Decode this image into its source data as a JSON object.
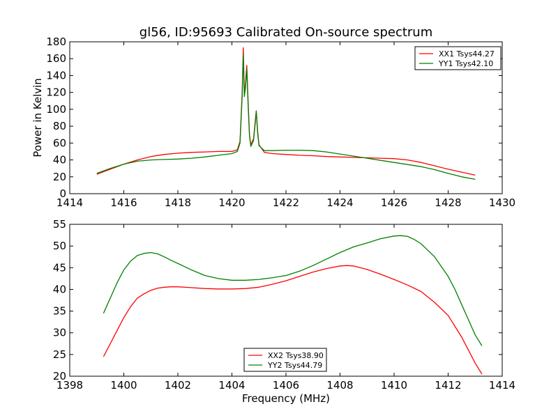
{
  "chart_data": [
    {
      "type": "line",
      "title": "gl56, ID:95693 Calibrated On-source spectrum",
      "xlabel": "",
      "ylabel": "Power in Kelvin",
      "xlim": [
        1414,
        1430
      ],
      "ylim": [
        0,
        180
      ],
      "xticks": [
        "1414",
        "1416",
        "1418",
        "1420",
        "1422",
        "1424",
        "1426",
        "1428",
        "1430"
      ],
      "yticks": [
        "0",
        "20",
        "40",
        "60",
        "80",
        "100",
        "120",
        "140",
        "160",
        "180"
      ],
      "grid": false,
      "legend_position": "top-right",
      "series": [
        {
          "name": "XX1 Tsys44.27",
          "color": "#ff0000",
          "x": [
            1415.0,
            1415.5,
            1416.0,
            1416.5,
            1417.0,
            1417.5,
            1418.0,
            1418.5,
            1419.0,
            1419.5,
            1420.0,
            1420.2,
            1420.3,
            1420.38,
            1420.42,
            1420.46,
            1420.5,
            1420.55,
            1420.6,
            1420.65,
            1420.7,
            1420.8,
            1420.86,
            1420.9,
            1420.95,
            1421.0,
            1421.2,
            1421.5,
            1422.0,
            1422.5,
            1423.0,
            1423.5,
            1424.0,
            1424.5,
            1425.0,
            1425.5,
            1426.0,
            1426.5,
            1427.0,
            1427.5,
            1428.0,
            1428.5,
            1429.0
          ],
          "y": [
            23,
            29,
            35,
            40,
            44,
            46.5,
            48,
            49,
            49.5,
            50,
            50,
            52,
            62,
            120,
            173,
            120,
            130,
            152,
            110,
            70,
            58,
            65,
            85,
            98,
            75,
            58,
            49,
            47.5,
            46.5,
            45.5,
            45,
            44,
            43.5,
            43,
            42.5,
            42,
            41.5,
            40,
            37,
            33,
            29,
            25.5,
            22
          ]
        },
        {
          "name": "YY1 Tsys42.10",
          "color": "#008000",
          "x": [
            1415.0,
            1415.5,
            1416.0,
            1416.5,
            1417.0,
            1417.5,
            1418.0,
            1418.5,
            1419.0,
            1419.5,
            1420.0,
            1420.2,
            1420.3,
            1420.38,
            1420.42,
            1420.46,
            1420.5,
            1420.55,
            1420.6,
            1420.65,
            1420.7,
            1420.8,
            1420.86,
            1420.9,
            1420.95,
            1421.0,
            1421.2,
            1421.5,
            1422.0,
            1422.5,
            1423.0,
            1423.5,
            1424.0,
            1424.5,
            1425.0,
            1425.5,
            1426.0,
            1426.5,
            1427.0,
            1427.5,
            1428.0,
            1428.5,
            1429.0
          ],
          "y": [
            24,
            30,
            35,
            38.5,
            40,
            40.5,
            41,
            42,
            43.5,
            45.5,
            47.5,
            50,
            60,
            115,
            165,
            115,
            125,
            148,
            105,
            68,
            56,
            63,
            82,
            98,
            72,
            57,
            51,
            51,
            51.5,
            51.5,
            51,
            49.5,
            47,
            44.5,
            42,
            39.5,
            37,
            34.5,
            32,
            28.5,
            24,
            20,
            17
          ]
        }
      ]
    },
    {
      "type": "line",
      "title": "",
      "xlabel": "Frequency (MHz)",
      "ylabel": "",
      "xlim": [
        1398,
        1414
      ],
      "ylim": [
        20,
        55
      ],
      "xticks": [
        "1398",
        "1400",
        "1402",
        "1404",
        "1406",
        "1408",
        "1410",
        "1412",
        "1414"
      ],
      "yticks": [
        "20",
        "25",
        "30",
        "35",
        "40",
        "45",
        "50",
        "55"
      ],
      "grid": false,
      "legend_position": "bottom-center",
      "series": [
        {
          "name": "XX2 Tsys38.90",
          "color": "#ff0000",
          "x": [
            1399.25,
            1399.5,
            1399.75,
            1400.0,
            1400.25,
            1400.5,
            1400.75,
            1401.0,
            1401.25,
            1401.5,
            1401.75,
            1402.0,
            1402.5,
            1403.0,
            1403.5,
            1404.0,
            1404.5,
            1405.0,
            1405.5,
            1406.0,
            1406.5,
            1407.0,
            1407.5,
            1408.0,
            1408.25,
            1408.5,
            1408.75,
            1409.0,
            1409.5,
            1410.0,
            1410.5,
            1411.0,
            1411.5,
            1412.0,
            1412.25,
            1412.5,
            1412.75,
            1413.0,
            1413.25
          ],
          "y": [
            24.5,
            27.5,
            30.5,
            33.5,
            36,
            38,
            39,
            39.8,
            40.3,
            40.5,
            40.6,
            40.6,
            40.4,
            40.2,
            40.1,
            40.1,
            40.2,
            40.5,
            41.2,
            42,
            43,
            44,
            44.8,
            45.4,
            45.5,
            45.4,
            45,
            44.6,
            43.5,
            42.3,
            41,
            39.5,
            37,
            34,
            31.5,
            29,
            26,
            23,
            20.5
          ]
        },
        {
          "name": "YY2 Tsys44.79",
          "color": "#008000",
          "x": [
            1399.25,
            1399.5,
            1399.75,
            1400.0,
            1400.25,
            1400.5,
            1400.75,
            1401.0,
            1401.25,
            1401.5,
            1401.75,
            1402.0,
            1402.5,
            1403.0,
            1403.5,
            1404.0,
            1404.5,
            1405.0,
            1405.5,
            1406.0,
            1406.5,
            1407.0,
            1407.5,
            1408.0,
            1408.5,
            1409.0,
            1409.5,
            1410.0,
            1410.25,
            1410.5,
            1410.75,
            1411.0,
            1411.5,
            1412.0,
            1412.25,
            1412.5,
            1412.75,
            1413.0,
            1413.25
          ],
          "y": [
            34.5,
            38,
            41.5,
            44.5,
            46.5,
            47.8,
            48.3,
            48.5,
            48.2,
            47.5,
            46.7,
            46,
            44.5,
            43.2,
            42.5,
            42.1,
            42.1,
            42.3,
            42.7,
            43.2,
            44.2,
            45.5,
            47,
            48.5,
            49.8,
            50.7,
            51.7,
            52.3,
            52.4,
            52.2,
            51.5,
            50.5,
            47.5,
            43,
            40,
            36.5,
            33,
            29.5,
            27
          ]
        }
      ]
    }
  ]
}
